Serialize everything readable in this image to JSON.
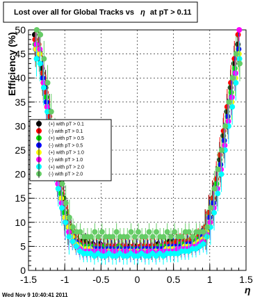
{
  "chart_data": {
    "type": "scatter",
    "title_prefix": "Lost over all for Global Tracks vs",
    "title_symbol": "η",
    "title_suffix": "at pT > 0.11",
    "xlabel": "η",
    "ylabel": "Efficiency (%)",
    "xlim": [
      -1.5,
      1.5
    ],
    "ylim": [
      0,
      50
    ],
    "xticks": [
      "-1.5",
      "-1",
      "-0.5",
      "0",
      "0.5",
      "1",
      "1.5"
    ],
    "yticks": [
      "0",
      "5",
      "10",
      "15",
      "20",
      "25",
      "30",
      "35",
      "40",
      "45",
      "50"
    ],
    "grid": true,
    "legend_position": "left-middle",
    "x": [
      -1.4,
      -1.35,
      -1.3,
      -1.25,
      -1.2,
      -1.15,
      -1.1,
      -1.05,
      -1.0,
      -0.95,
      -0.9,
      -0.85,
      -0.8,
      -0.75,
      -0.7,
      -0.65,
      -0.6,
      -0.55,
      -0.5,
      -0.45,
      -0.4,
      -0.35,
      -0.3,
      -0.25,
      -0.2,
      -0.15,
      -0.1,
      -0.05,
      0.0,
      0.05,
      0.1,
      0.15,
      0.2,
      0.25,
      0.3,
      0.35,
      0.4,
      0.45,
      0.5,
      0.55,
      0.6,
      0.65,
      0.7,
      0.75,
      0.8,
      0.85,
      0.9,
      0.95,
      1.0,
      1.05,
      1.1,
      1.15,
      1.2,
      1.25,
      1.3,
      1.35,
      1.4
    ],
    "series": [
      {
        "name": "(+) with pT > 0.1",
        "color": "#000000",
        "values": [
          49,
          47,
          42,
          38,
          33,
          27,
          22,
          18,
          15,
          11,
          9,
          7,
          6,
          6,
          6,
          5.5,
          5.5,
          5,
          5.5,
          5,
          5,
          5,
          5,
          5,
          5,
          5,
          5,
          4.5,
          5,
          4.5,
          5,
          5,
          5,
          5,
          5.5,
          5,
          5.5,
          6,
          6,
          6,
          5.5,
          6,
          6,
          6,
          6,
          6.5,
          7,
          9,
          12,
          15,
          18,
          23,
          28,
          33,
          38,
          43,
          47
        ]
      },
      {
        "name": "(-) with pT > 0.1",
        "color": "#ff0000",
        "values": [
          48,
          47,
          41,
          37,
          32,
          27,
          21,
          17,
          13,
          10,
          8,
          7,
          6,
          5.5,
          5,
          5,
          5,
          5,
          5,
          5,
          5,
          5,
          5,
          4.5,
          5,
          5,
          4.5,
          5,
          4.5,
          5,
          5,
          5,
          5,
          5,
          5,
          5,
          5.5,
          5.5,
          5.5,
          6,
          6,
          6,
          6,
          6.5,
          6.5,
          7,
          7.5,
          9,
          12,
          15,
          19,
          24,
          29,
          34,
          39,
          44,
          49
        ]
      },
      {
        "name": "(+) with pT > 0.5",
        "color": "#00dd00",
        "values": [
          47,
          46,
          40,
          36,
          31,
          25,
          20,
          16,
          12,
          9,
          8,
          6,
          5.5,
          5,
          5,
          5,
          5,
          4.5,
          4.5,
          5,
          4.5,
          4.5,
          4.5,
          5,
          4.5,
          4.5,
          4.5,
          4.5,
          4.5,
          4.5,
          4.5,
          4.5,
          4.5,
          4.5,
          5,
          5,
          5,
          5,
          5,
          5,
          5.5,
          5.5,
          5.5,
          5.5,
          6,
          6.5,
          7,
          8,
          11,
          14,
          18,
          22,
          27,
          32,
          37,
          42,
          46
        ]
      },
      {
        "name": "(-) with pT > 0.5",
        "color": "#0000ff",
        "values": [
          46,
          45,
          40,
          35,
          30,
          24,
          19,
          15,
          11,
          9,
          7,
          6,
          5,
          4.5,
          4.5,
          4.5,
          4.5,
          4.5,
          4.5,
          4,
          4.5,
          4.5,
          4,
          4.5,
          4,
          4.5,
          4.5,
          4,
          4.5,
          4,
          4.5,
          4.5,
          4,
          4.5,
          4.5,
          4.5,
          4.5,
          5,
          5,
          5,
          5,
          5,
          5.5,
          5.5,
          5.5,
          6,
          7,
          8,
          11,
          14,
          17,
          22,
          27,
          32,
          36,
          41,
          46
        ]
      },
      {
        "name": "(+) with pT > 1.0",
        "color": "#ffff00",
        "values": [
          46,
          45,
          39,
          34,
          29,
          24,
          19,
          15,
          11,
          9,
          7,
          5.5,
          5,
          4.5,
          4.5,
          4.5,
          4,
          4,
          4,
          4,
          4,
          4,
          4,
          4,
          4,
          4,
          4,
          4,
          4,
          4,
          4,
          4,
          4,
          4,
          4,
          4,
          4.5,
          4.5,
          4.5,
          4.5,
          4.5,
          5,
          5,
          5,
          5.5,
          6,
          6.5,
          8,
          10,
          13,
          17,
          21,
          26,
          31,
          35,
          40,
          45
        ]
      },
      {
        "name": "(-) with pT > 1.0",
        "color": "#ff00ff",
        "values": [
          47,
          46,
          39,
          34,
          29,
          23,
          18,
          14,
          10,
          8,
          6,
          5,
          4.5,
          4,
          4,
          4,
          4,
          4,
          4,
          4,
          3.5,
          4,
          4,
          3.5,
          4,
          4,
          3.5,
          4,
          3.5,
          4,
          3.5,
          4,
          4,
          3.5,
          4,
          4,
          4,
          4,
          4,
          4.5,
          4.5,
          4.5,
          4.5,
          5,
          5,
          5.5,
          6,
          7.5,
          10,
          13,
          17,
          21,
          26,
          31,
          36,
          41,
          50
        ]
      },
      {
        "name": "(+) with pT > 2.0",
        "color": "#00ffff",
        "values": [
          44,
          43,
          38,
          33,
          28,
          22,
          17,
          13,
          10,
          7,
          6,
          5,
          4,
          3.5,
          3.5,
          3.5,
          3,
          3.5,
          3,
          3,
          3.5,
          3,
          3,
          3.5,
          3,
          3,
          3.5,
          3,
          3,
          3.5,
          3,
          3,
          3.5,
          3,
          3.5,
          3,
          3.5,
          3.5,
          3.5,
          3.5,
          4,
          4,
          4,
          4.5,
          4.5,
          5,
          5.5,
          7,
          9,
          12,
          16,
          20,
          25,
          30,
          34,
          39,
          44
        ]
      },
      {
        "name": "(-) with pT > 2.0",
        "color": "#66cc66",
        "values": [
          50,
          49,
          44,
          39,
          33,
          28,
          22,
          18,
          14,
          11,
          9,
          8,
          8,
          7,
          7,
          7,
          8,
          7,
          8,
          7,
          7,
          7,
          8,
          7,
          7,
          7,
          8,
          7,
          8,
          7,
          7,
          8,
          7,
          8,
          7,
          7,
          8,
          7,
          8,
          7,
          7,
          8,
          8,
          7,
          8,
          8,
          8,
          9,
          13,
          17,
          21,
          25,
          30,
          35,
          40,
          45,
          43
        ]
      }
    ]
  },
  "footer": {
    "timestamp": "Wed Nov  9 10:40:41 2011"
  }
}
